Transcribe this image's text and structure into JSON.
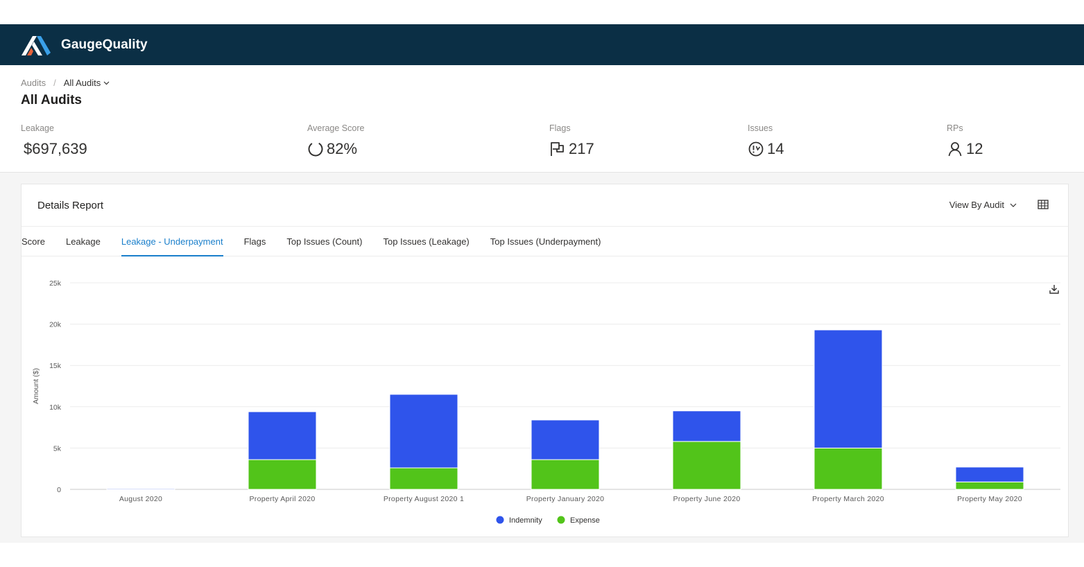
{
  "app": {
    "name": "GaugeQuality"
  },
  "breadcrumb": {
    "root": "Audits",
    "separator": "/",
    "current": "All Audits"
  },
  "page": {
    "title": "All Audits"
  },
  "stats": [
    {
      "label": "Leakage",
      "value": "$697,639",
      "icon": "none"
    },
    {
      "label": "Average Score",
      "value": "82%",
      "icon": "progress-ring-icon"
    },
    {
      "label": "Flags",
      "value": "217",
      "icon": "flag-icon"
    },
    {
      "label": "Issues",
      "value": "14",
      "icon": "clock-alert-icon"
    },
    {
      "label": "RPs",
      "value": "12",
      "icon": "person-icon"
    }
  ],
  "report": {
    "title": "Details Report",
    "view_by": "View By Audit",
    "tabs": [
      "Score",
      "Leakage",
      "Leakage - Underpayment",
      "Flags",
      "Top Issues (Count)",
      "Top Issues (Leakage)",
      "Top Issues (Underpayment)"
    ],
    "active_tab": "Leakage - Underpayment"
  },
  "colors": {
    "navbar": "#0b2f45",
    "accent": "#1a7fcb",
    "indemnity": "#2f54eb",
    "expense": "#52c41a"
  },
  "chart_data": {
    "type": "bar",
    "stacked": true,
    "categories": [
      "August 2020",
      "Property April 2020",
      "Property August 2020 1",
      "Property January 2020",
      "Property June 2020",
      "Property March 2020",
      "Property May 2020"
    ],
    "series": [
      {
        "name": "Expense",
        "color": "#52c41a",
        "values": [
          0,
          3600,
          2600,
          3600,
          5800,
          5000,
          900
        ]
      },
      {
        "name": "Indemnity",
        "color": "#2f54eb",
        "values": [
          100,
          5800,
          8900,
          4800,
          3700,
          14300,
          1800
        ]
      }
    ],
    "legend_order": [
      "Indemnity",
      "Expense"
    ],
    "legend_position": "bottom",
    "ylabel": "Amount ($)",
    "xlabel": "",
    "ylim": [
      0,
      25000
    ],
    "yticks": [
      {
        "value": 0,
        "label": "0"
      },
      {
        "value": 5000,
        "label": "5k"
      },
      {
        "value": 10000,
        "label": "10k"
      },
      {
        "value": 15000,
        "label": "15k"
      },
      {
        "value": 20000,
        "label": "20k"
      },
      {
        "value": 25000,
        "label": "25k"
      }
    ],
    "grid": true
  }
}
